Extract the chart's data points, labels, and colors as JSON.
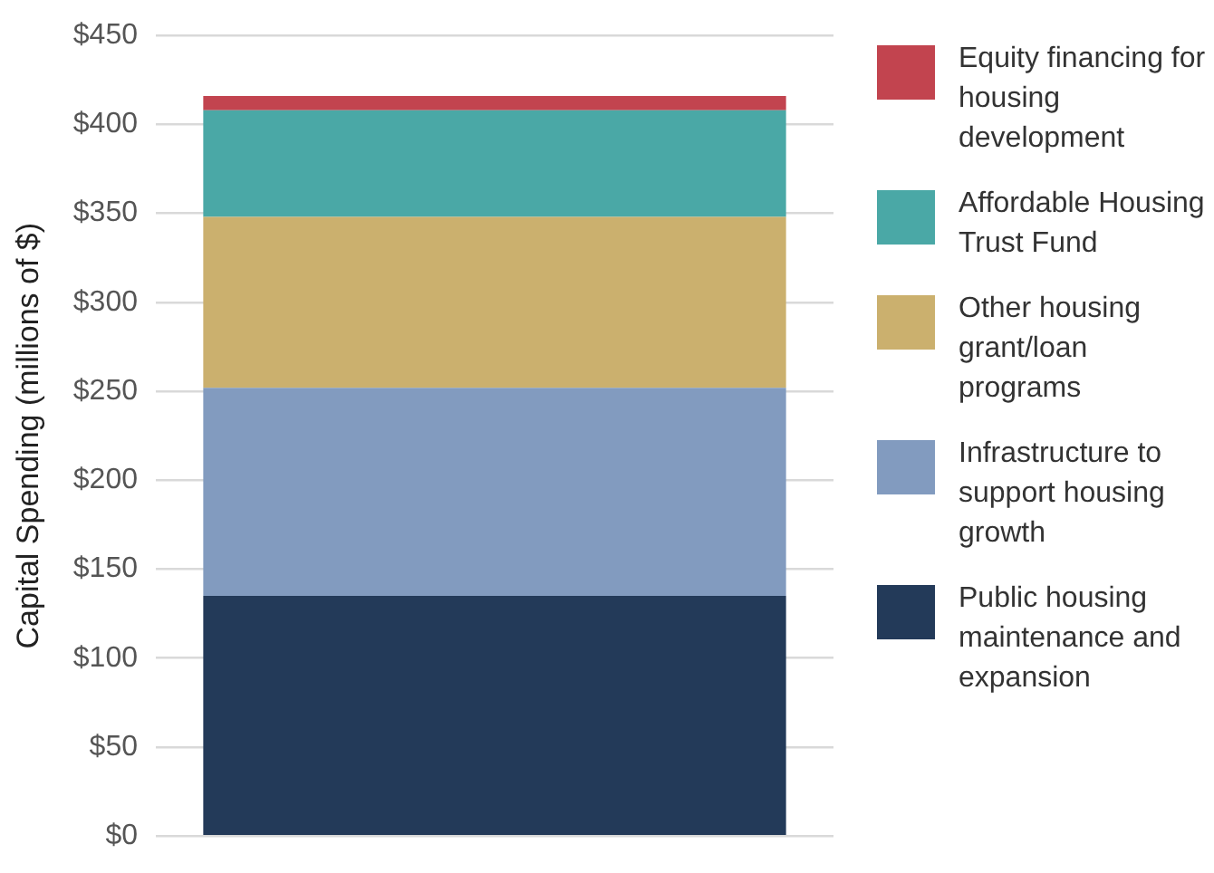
{
  "chart_data": {
    "type": "bar",
    "stacked": true,
    "ylabel": "Capital Spending (millions of $)",
    "categories": [
      null
    ],
    "series": [
      {
        "name": "Public housing maintenance and expansion",
        "color": "#233a59",
        "values": [
          135
        ]
      },
      {
        "name": "Infrastructure to support housing growth",
        "color": "#829bbf",
        "values": [
          117
        ]
      },
      {
        "name": "Other housing grant/loan programs",
        "color": "#cbb06e",
        "values": [
          96
        ]
      },
      {
        "name": "Affordable Housing Trust Fund",
        "color": "#4aa8a6",
        "values": [
          60
        ]
      },
      {
        "name": "Equity financing for housing development",
        "color": "#c2444f",
        "values": [
          8
        ]
      }
    ],
    "ylim": [
      0,
      450
    ],
    "yticks": [
      {
        "value": 0,
        "label": "$0"
      },
      {
        "value": 50,
        "label": "$50"
      },
      {
        "value": 100,
        "label": "$100"
      },
      {
        "value": 150,
        "label": "$150"
      },
      {
        "value": 200,
        "label": "$200"
      },
      {
        "value": 250,
        "label": "$250"
      },
      {
        "value": 300,
        "label": "$300"
      },
      {
        "value": 350,
        "label": "$350"
      },
      {
        "value": 400,
        "label": "$400"
      },
      {
        "value": 450,
        "label": "$450"
      }
    ],
    "grid": "y",
    "legend": "right"
  }
}
